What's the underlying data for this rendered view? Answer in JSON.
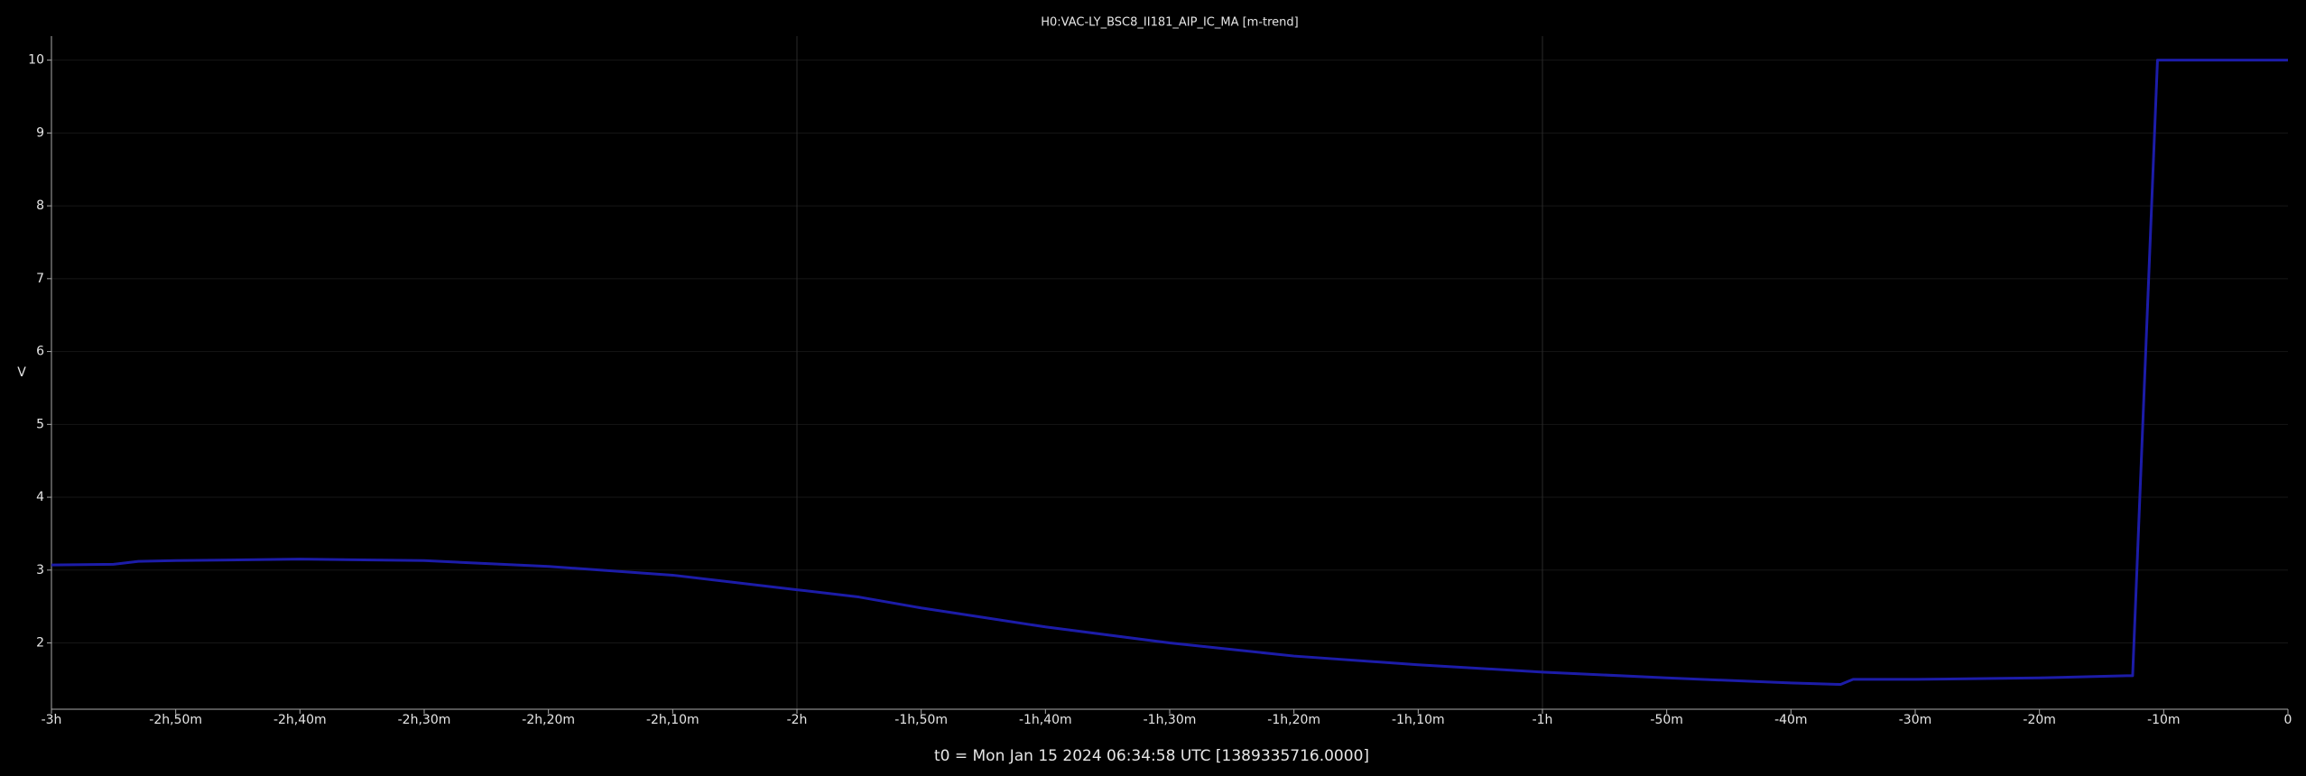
{
  "chart_data": {
    "type": "line",
    "title": "H0:VAC-LY_BSC8_II181_AIP_IC_MA [m-trend]",
    "y_label": "V",
    "x_label": "t0 = Mon Jan 15 2024 06:34:58 UTC [1389335716.0000]",
    "x": [
      -180,
      -175,
      -173,
      -170,
      -160,
      -150,
      -140,
      -130,
      -120,
      -115,
      -110,
      -105,
      -100,
      -90,
      -80,
      -70,
      -60,
      -50,
      -40,
      -36,
      -35,
      -30,
      -20,
      -13,
      -12.5,
      -10.5,
      -5,
      0
    ],
    "series": [
      {
        "color": "#1c1ca8",
        "values": [
          3.07,
          3.08,
          3.12,
          3.13,
          3.15,
          3.13,
          3.05,
          2.93,
          2.73,
          2.63,
          2.48,
          2.35,
          2.22,
          2.0,
          1.82,
          1.7,
          1.6,
          1.52,
          1.45,
          1.43,
          1.5,
          1.5,
          1.52,
          1.55,
          1.55,
          10,
          10,
          10
        ]
      }
    ],
    "xlim": [
      -180,
      0
    ],
    "ylim": [
      1.09,
      10.33
    ],
    "yticks": [
      2,
      3,
      4,
      5,
      6,
      7,
      8,
      9,
      10
    ],
    "xticks": [
      {
        "value": -180,
        "label": "-3h"
      },
      {
        "value": -170,
        "label": "-2h,50m"
      },
      {
        "value": -160,
        "label": "-2h,40m"
      },
      {
        "value": -150,
        "label": "-2h,30m"
      },
      {
        "value": -140,
        "label": "-2h,20m"
      },
      {
        "value": -130,
        "label": "-2h,10m"
      },
      {
        "value": -120,
        "label": "-2h"
      },
      {
        "value": -110,
        "label": "-1h,50m"
      },
      {
        "value": -100,
        "label": "-1h,40m"
      },
      {
        "value": -90,
        "label": "-1h,30m"
      },
      {
        "value": -80,
        "label": "-1h,20m"
      },
      {
        "value": -70,
        "label": "-1h,10m"
      },
      {
        "value": -60,
        "label": "-1h"
      },
      {
        "value": -50,
        "label": "-50m"
      },
      {
        "value": -40,
        "label": "-40m"
      },
      {
        "value": -30,
        "label": "-30m"
      },
      {
        "value": -20,
        "label": "-20m"
      },
      {
        "value": -10,
        "label": "-10m"
      },
      0
    ],
    "grid": true
  }
}
